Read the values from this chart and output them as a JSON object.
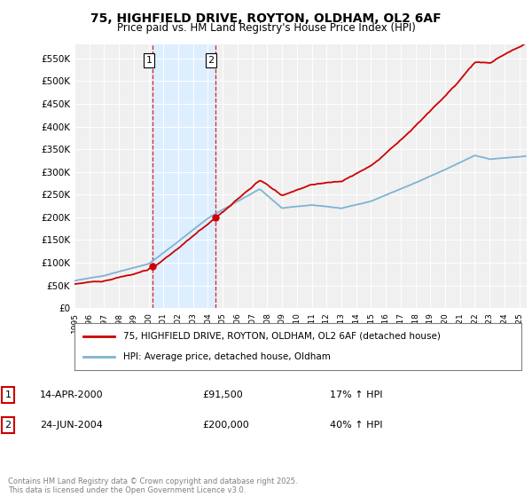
{
  "title": "75, HIGHFIELD DRIVE, ROYTON, OLDHAM, OL2 6AF",
  "subtitle": "Price paid vs. HM Land Registry's House Price Index (HPI)",
  "title_fontsize": 10,
  "subtitle_fontsize": 8.5,
  "ylabel_ticks": [
    "£0",
    "£50K",
    "£100K",
    "£150K",
    "£200K",
    "£250K",
    "£300K",
    "£350K",
    "£400K",
    "£450K",
    "£500K",
    "£550K"
  ],
  "ytick_values": [
    0,
    50000,
    100000,
    150000,
    200000,
    250000,
    300000,
    350000,
    400000,
    450000,
    500000,
    550000
  ],
  "ylim": [
    0,
    580000
  ],
  "xlim_start": 1995.0,
  "xlim_end": 2025.5,
  "xticks": [
    1995,
    1996,
    1997,
    1998,
    1999,
    2000,
    2001,
    2002,
    2003,
    2004,
    2005,
    2006,
    2007,
    2008,
    2009,
    2010,
    2011,
    2012,
    2013,
    2014,
    2015,
    2016,
    2017,
    2018,
    2019,
    2020,
    2021,
    2022,
    2023,
    2024,
    2025
  ],
  "sale1_x": 2000.28,
  "sale1_y": 91500,
  "sale2_x": 2004.48,
  "sale2_y": 200000,
  "property_color": "#cc0000",
  "hpi_color": "#7fb3d3",
  "shaded_color": "#ddeeff",
  "legend_property": "75, HIGHFIELD DRIVE, ROYTON, OLDHAM, OL2 6AF (detached house)",
  "legend_hpi": "HPI: Average price, detached house, Oldham",
  "sale1_date": "14-APR-2000",
  "sale1_price": "£91,500",
  "sale1_hpi": "17% ↑ HPI",
  "sale2_date": "24-JUN-2004",
  "sale2_price": "£200,000",
  "sale2_hpi": "40% ↑ HPI",
  "footer": "Contains HM Land Registry data © Crown copyright and database right 2025.\nThis data is licensed under the Open Government Licence v3.0.",
  "background_color": "#f0f0f0"
}
